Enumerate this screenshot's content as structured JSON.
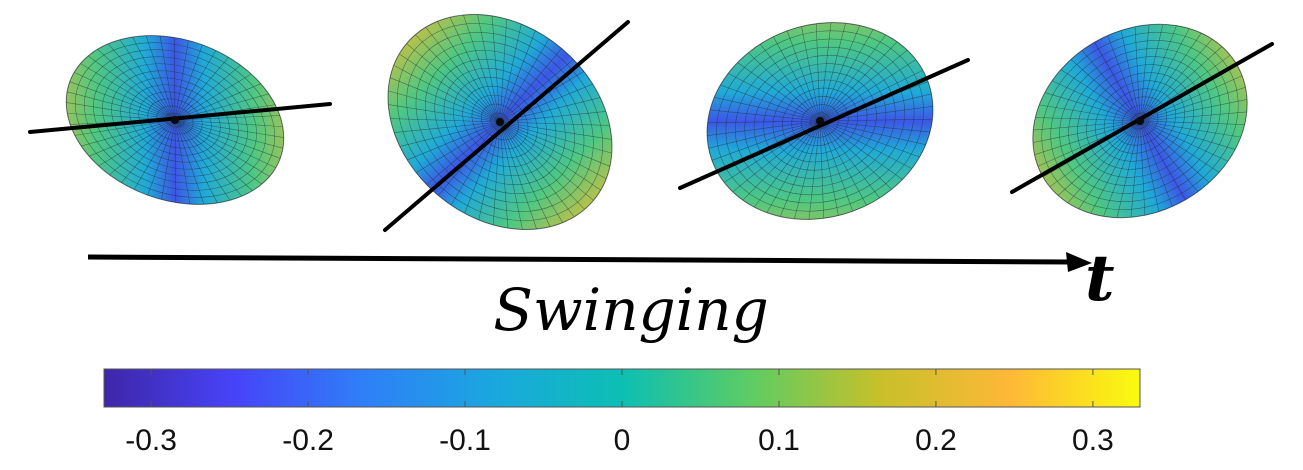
{
  "diagram": {
    "time_label": "t",
    "caption": "Swinging",
    "frames": [
      {
        "name": "frame-1",
        "axis_angle_deg": -5,
        "tilt_deg": 20,
        "pattern_rotation_deg": 0
      },
      {
        "name": "frame-2",
        "axis_angle_deg": -45,
        "tilt_deg": -50,
        "pattern_rotation_deg": 45
      },
      {
        "name": "frame-3",
        "axis_angle_deg": -24,
        "tilt_deg": -20,
        "pattern_rotation_deg": 90
      },
      {
        "name": "frame-4",
        "axis_angle_deg": -30,
        "tilt_deg": -30,
        "pattern_rotation_deg": 150
      }
    ]
  },
  "colorbar": {
    "min": -0.33,
    "max": 0.33,
    "colormap": "parula",
    "colors": [
      "#3e26a8",
      "#4743f8",
      "#2f7ff8",
      "#1aa7df",
      "#0cbfb3",
      "#5ecc63",
      "#c8c02a",
      "#feb837",
      "#f9fb0e"
    ],
    "ticks": [
      {
        "value": -0.3,
        "label": "-0.3"
      },
      {
        "value": -0.2,
        "label": "-0.2"
      },
      {
        "value": -0.1,
        "label": "-0.1"
      },
      {
        "value": 0,
        "label": "0"
      },
      {
        "value": 0.1,
        "label": "0.1"
      },
      {
        "value": 0.2,
        "label": "0.2"
      },
      {
        "value": 0.3,
        "label": "0.3"
      }
    ]
  }
}
